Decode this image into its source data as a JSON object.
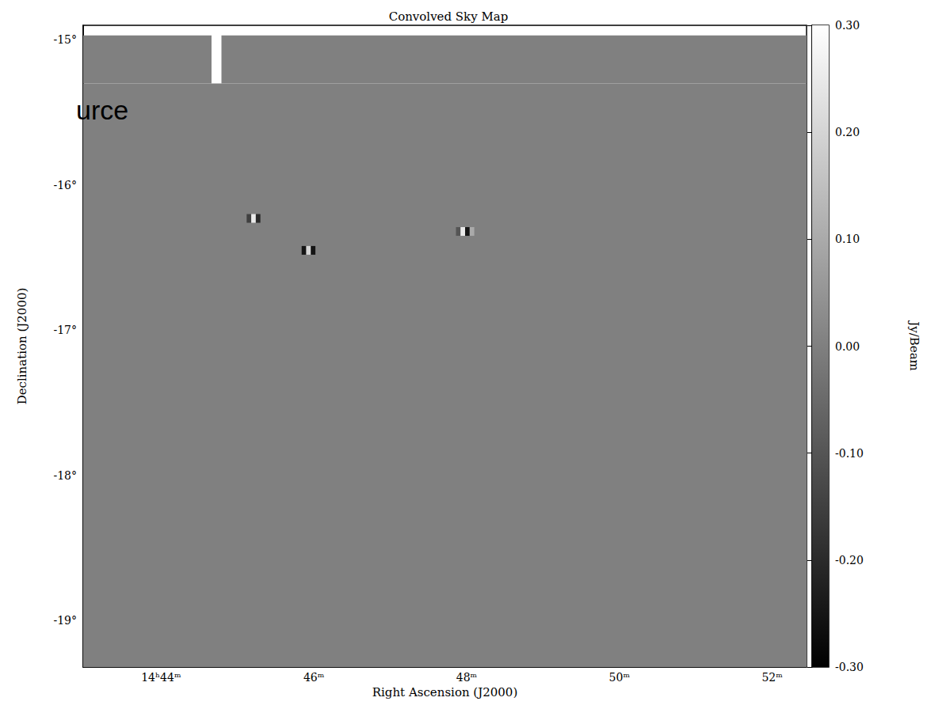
{
  "chart_data": {
    "type": "heatmap",
    "title": "Convolved Sky Map",
    "x_label": "Right Ascension (J2000)",
    "y_label": "Declination (J2000)",
    "xlim": [
      42.98,
      52.45
    ],
    "xticks": [
      {
        "value": 44,
        "label": "14ʰ44ᵐ"
      },
      {
        "value": 46,
        "label": "46ᵐ"
      },
      {
        "value": 48,
        "label": "48ᵐ"
      },
      {
        "value": 50,
        "label": "50ᵐ"
      },
      {
        "value": 52,
        "label": "52ᵐ"
      }
    ],
    "ylim": [
      -19.32,
      -14.9
    ],
    "yticks": [
      {
        "value": -19,
        "label": "-19°"
      },
      {
        "value": -18,
        "label": "-18°"
      },
      {
        "value": -17,
        "label": "-17°"
      },
      {
        "value": -16,
        "label": "-16°"
      },
      {
        "value": -15,
        "label": "-15°"
      }
    ],
    "cells": [
      {
        "ra": [
          42.98,
          52.45
        ],
        "dec": [
          -19.32,
          -15.3
        ],
        "value": 0
      },
      {
        "ra": [
          42.98,
          44.66
        ],
        "dec": [
          -15.3,
          -14.97
        ],
        "value": 0
      },
      {
        "ra": [
          44.79,
          52.45
        ],
        "dec": [
          -15.3,
          -14.97
        ],
        "value": 0
      },
      {
        "ra": [
          45.12,
          45.18
        ],
        "dec": [
          -16.26,
          -16.2
        ],
        "value": -0.15
      },
      {
        "ra": [
          45.18,
          45.24
        ],
        "dec": [
          -16.26,
          -16.2
        ],
        "value": 0.25
      },
      {
        "ra": [
          45.24,
          45.3
        ],
        "dec": [
          -16.26,
          -16.2
        ],
        "value": -0.2
      },
      {
        "ra": [
          45.84,
          45.9
        ],
        "dec": [
          -16.48,
          -16.42
        ],
        "value": -0.25
      },
      {
        "ra": [
          45.9,
          45.96
        ],
        "dec": [
          -16.48,
          -16.42
        ],
        "value": 0.2
      },
      {
        "ra": [
          45.96,
          46.02
        ],
        "dec": [
          -16.48,
          -16.42
        ],
        "value": -0.25
      },
      {
        "ra": [
          47.86,
          47.92
        ],
        "dec": [
          -16.35,
          -16.29
        ],
        "value": -0.1
      },
      {
        "ra": [
          47.92,
          47.98
        ],
        "dec": [
          -16.35,
          -16.29
        ],
        "value": 0.25
      },
      {
        "ra": [
          47.98,
          48.04
        ],
        "dec": [
          -16.35,
          -16.29
        ],
        "value": -0.25
      },
      {
        "ra": [
          48.04,
          48.1
        ],
        "dec": [
          -16.35,
          -16.29
        ],
        "value": 0.1
      }
    ],
    "colorbar": {
      "label": "Jy/Beam",
      "range": [
        -0.3,
        0.3
      ],
      "ticks": [
        {
          "value": 0.3,
          "label": "0.30"
        },
        {
          "value": 0.2,
          "label": "0.20"
        },
        {
          "value": 0.1,
          "label": "0.10"
        },
        {
          "value": 0,
          "label": "0.00"
        },
        {
          "value": -0.1,
          "label": "-0.10"
        },
        {
          "value": -0.2,
          "label": "-0.20"
        },
        {
          "value": -0.3,
          "label": "-0.30"
        }
      ]
    },
    "annotations": [
      "urce"
    ],
    "grid": false
  }
}
